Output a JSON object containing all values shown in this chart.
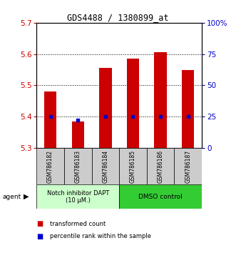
{
  "title": "GDS4488 / 1380899_at",
  "samples": [
    "GSM786182",
    "GSM786183",
    "GSM786184",
    "GSM786185",
    "GSM786186",
    "GSM786187"
  ],
  "transformed_counts": [
    5.48,
    5.385,
    5.555,
    5.585,
    5.605,
    5.55
  ],
  "percentile_ranks": [
    5.4,
    5.39,
    5.4,
    5.4,
    5.4,
    5.4
  ],
  "ylim_left": [
    5.3,
    5.7
  ],
  "yticks_left": [
    5.3,
    5.4,
    5.5,
    5.6,
    5.7
  ],
  "ylim_right": [
    0,
    100
  ],
  "yticks_right": [
    0,
    25,
    50,
    75,
    100
  ],
  "ytick_labels_right": [
    "0",
    "25",
    "50",
    "75",
    "100%"
  ],
  "bar_color": "#cc0000",
  "dot_color": "#0000cc",
  "bar_bottom": 5.3,
  "group1_label": "Notch inhibitor DAPT\n(10 μM.)",
  "group2_label": "DMSO control",
  "group1_indices": [
    0,
    1,
    2
  ],
  "group2_indices": [
    3,
    4,
    5
  ],
  "group1_color": "#ccffcc",
  "group2_color": "#33cc33",
  "agent_label": "agent",
  "legend1_label": "transformed count",
  "legend2_label": "percentile rank within the sample",
  "tick_color_left": "#cc0000",
  "tick_color_right": "#0000cc",
  "grid_color": "#000000",
  "background_color": "#ffffff",
  "sample_box_color": "#cccccc"
}
